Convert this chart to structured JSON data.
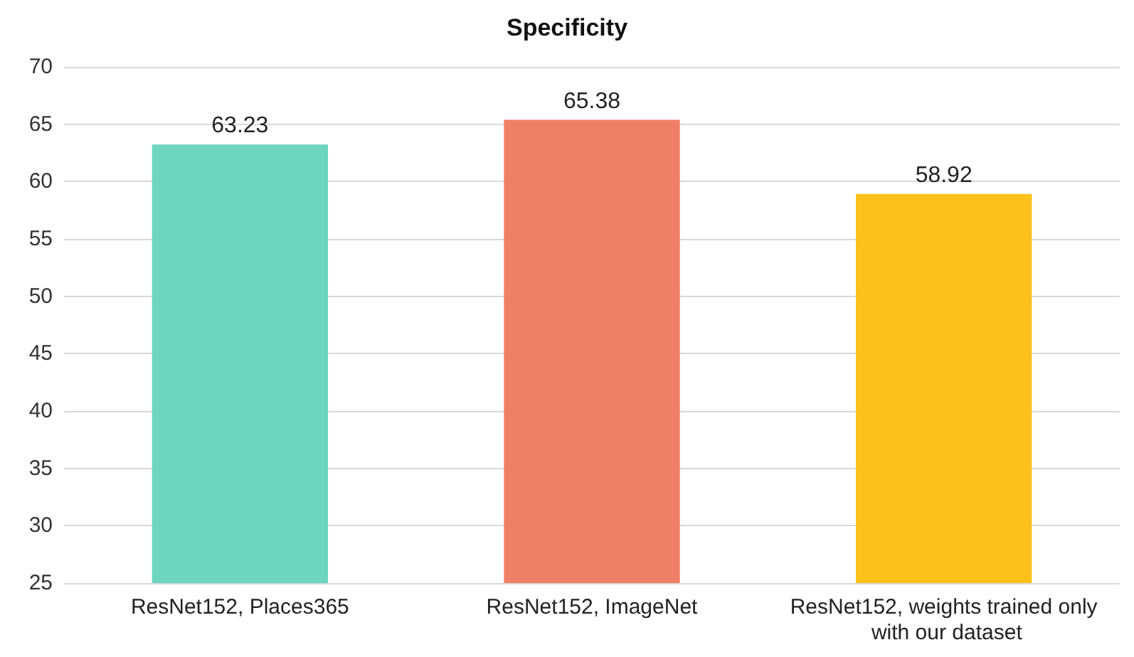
{
  "chart_data": {
    "type": "bar",
    "title": "Specificity",
    "categories": [
      "ResNet152, Places365",
      "ResNet152, ImageNet",
      "ResNet152, weights trained only with our dataset"
    ],
    "values": [
      63.23,
      65.38,
      58.92
    ],
    "colors": [
      "#6dd5c0",
      "#f07f67",
      "#fcc21b"
    ],
    "ylim": [
      25,
      70
    ],
    "yticks": [
      25,
      30,
      35,
      40,
      45,
      50,
      55,
      60,
      65,
      70
    ],
    "grid": "y",
    "data_labels": true
  }
}
